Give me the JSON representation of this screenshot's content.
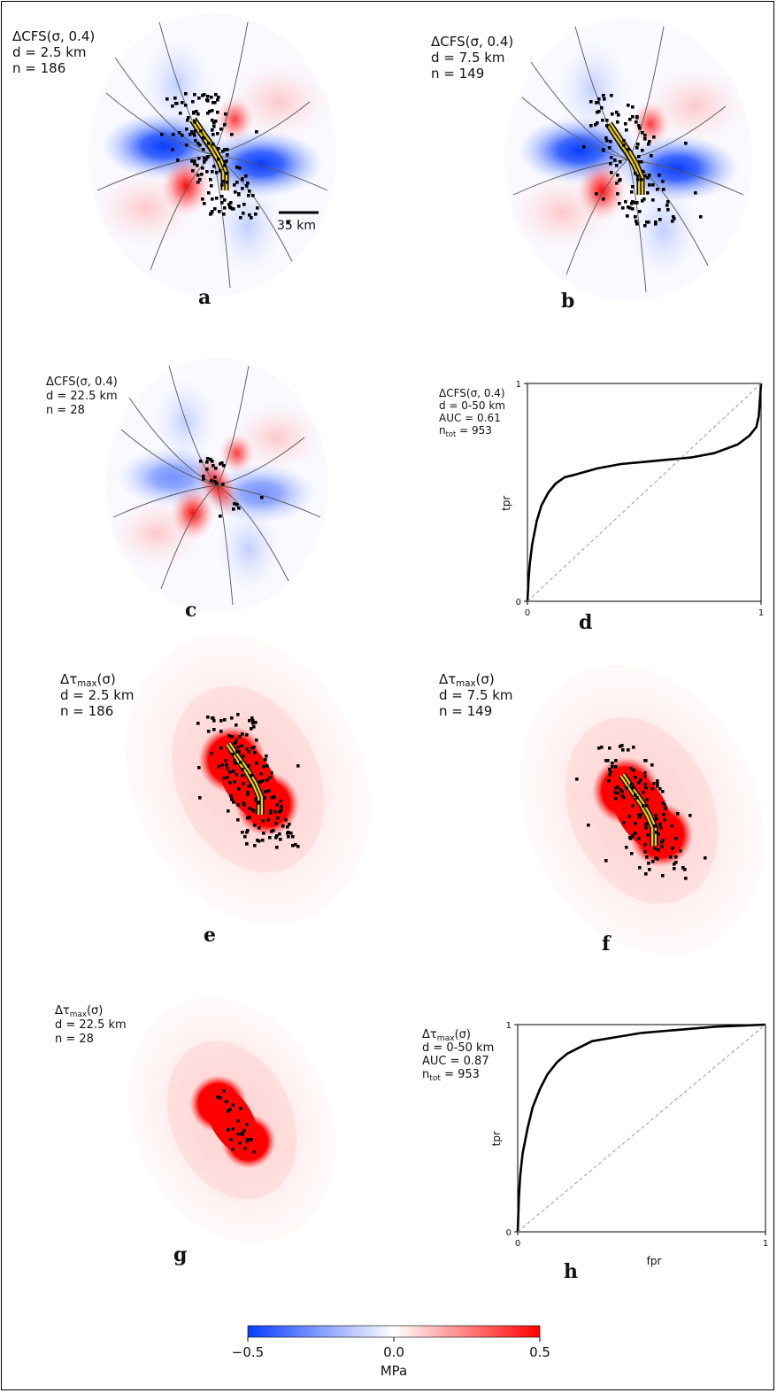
{
  "colors": {
    "negative": "#0a3cff",
    "positive": "#ff0000",
    "neutral": "#ffffff",
    "fault": "#f2d000",
    "events": "#000000",
    "diagonal": "#9a9a9a"
  },
  "panels": [
    {
      "letter": "a",
      "kind": "cfs",
      "label": {
        "main": "ΔCFS(σ, 0.4)",
        "sub": "",
        "d": "d = 2.5 km",
        "n": "n = 186"
      },
      "scalebar": "35 km"
    },
    {
      "letter": "b",
      "kind": "cfs",
      "label": {
        "main": "ΔCFS(σ, 0.4)",
        "sub": "",
        "d": "d = 7.5 km",
        "n": "n = 149"
      }
    },
    {
      "letter": "c",
      "kind": "cfs",
      "label": {
        "main": "ΔCFS(σ, 0.4)",
        "sub": "",
        "d": "d = 22.5 km",
        "n": "n = 28"
      }
    },
    {
      "letter": "e",
      "kind": "tau",
      "label": {
        "main": "Δτ",
        "sub": "max",
        "suffix": "(σ)",
        "d": "d = 2.5 km",
        "n": "n = 186"
      }
    },
    {
      "letter": "f",
      "kind": "tau",
      "label": {
        "main": "Δτ",
        "sub": "max",
        "suffix": "(σ)",
        "d": "d = 7.5 km",
        "n": "n = 149"
      }
    },
    {
      "letter": "g",
      "kind": "tau",
      "label": {
        "main": "Δτ",
        "sub": "max",
        "suffix": "(σ)",
        "d": "d = 22.5 km",
        "n": "n = 28"
      }
    }
  ],
  "chart_data": [
    {
      "type": "line",
      "panel": "d",
      "annotation": [
        "ΔCFS(σ, 0.4)",
        "d = 0-50 km",
        "AUC = 0.61",
        "n_tot = 953"
      ],
      "xlabel": "",
      "ylabel": "tpr",
      "xlim": [
        0,
        1
      ],
      "ylim": [
        0,
        1
      ],
      "xticks": [
        "0",
        "1"
      ],
      "yticks": [
        "0",
        "1"
      ],
      "series": [
        {
          "x": [
            0,
            0.005,
            0.01,
            0.02,
            0.04,
            0.06,
            0.09,
            0.12,
            0.16,
            0.2,
            0.3,
            0.4,
            0.5,
            0.6,
            0.7,
            0.8,
            0.9,
            0.95,
            0.98,
            0.99,
            1.0
          ],
          "y": [
            0,
            0.1,
            0.17,
            0.26,
            0.37,
            0.44,
            0.5,
            0.54,
            0.57,
            0.58,
            0.61,
            0.63,
            0.64,
            0.65,
            0.66,
            0.68,
            0.72,
            0.76,
            0.8,
            0.85,
            1.0
          ]
        },
        {
          "x": [
            0,
            1
          ],
          "y": [
            0,
            1
          ],
          "style": "dashed"
        }
      ]
    },
    {
      "type": "line",
      "panel": "h",
      "annotation": [
        "Δτmax(σ)",
        "d = 0-50 km",
        "AUC = 0.87",
        "n_tot = 953"
      ],
      "xlabel": "fpr",
      "ylabel": "tpr",
      "xlim": [
        0,
        1
      ],
      "ylim": [
        0,
        1
      ],
      "xticks": [
        "0",
        "1"
      ],
      "yticks": [
        "0",
        "1"
      ],
      "series": [
        {
          "x": [
            0,
            0.005,
            0.01,
            0.02,
            0.04,
            0.06,
            0.09,
            0.12,
            0.16,
            0.2,
            0.25,
            0.3,
            0.4,
            0.5,
            0.6,
            0.7,
            0.8,
            0.9,
            1.0
          ],
          "y": [
            0,
            0.17,
            0.27,
            0.38,
            0.5,
            0.6,
            0.69,
            0.76,
            0.82,
            0.86,
            0.89,
            0.92,
            0.94,
            0.96,
            0.97,
            0.98,
            0.99,
            0.995,
            1.0
          ]
        },
        {
          "x": [
            0,
            1
          ],
          "y": [
            0,
            1
          ],
          "style": "dashed"
        }
      ]
    }
  ],
  "colorbar": {
    "min": -0.5,
    "max": 0.5,
    "ticks": [
      "−0.5",
      "0.0",
      "0.5"
    ],
    "label": "MPa"
  }
}
